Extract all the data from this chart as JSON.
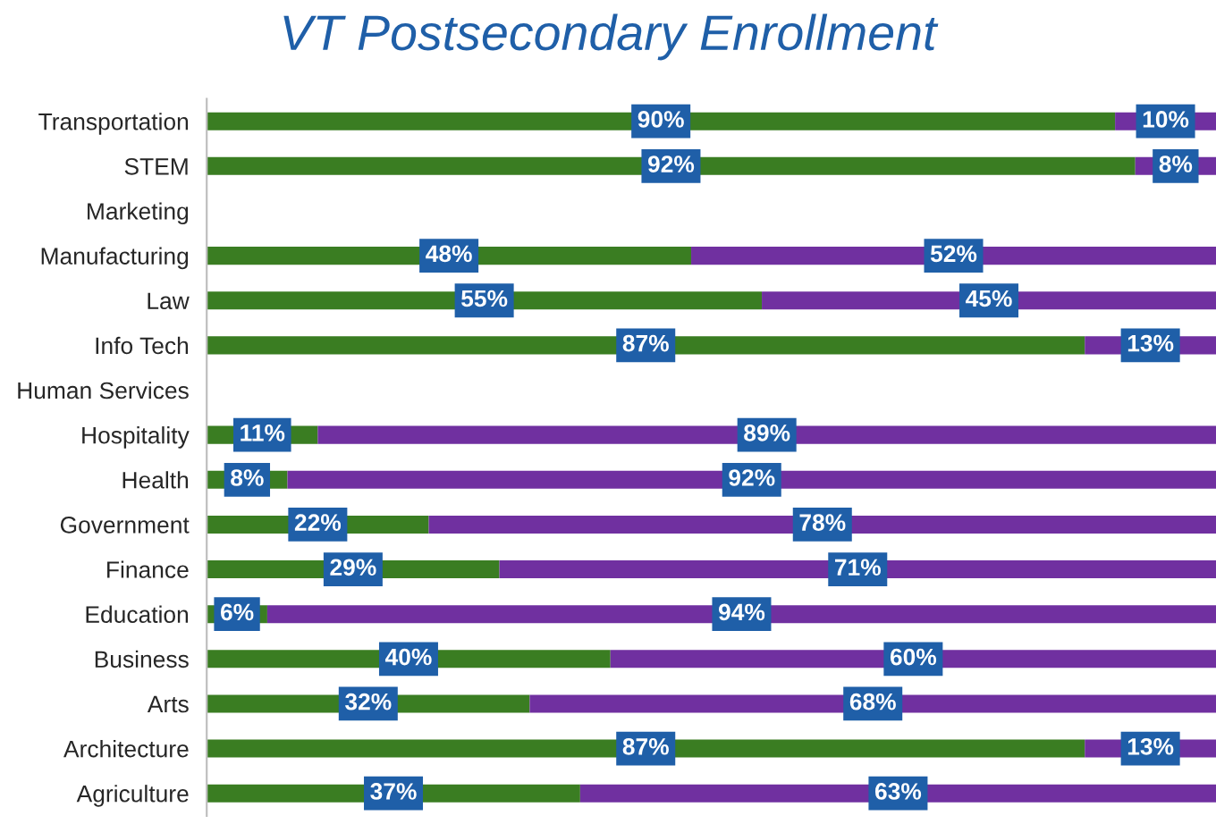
{
  "chart_data": {
    "type": "bar",
    "orientation": "horizontal",
    "stacked": true,
    "title": "VT Postsecondary Enrollment",
    "tick_labels": "y",
    "grid": false,
    "legend": false,
    "categories": [
      "Transportation",
      "STEM",
      "Marketing",
      "Manufacturing",
      "Law",
      "Info Tech",
      "Human Services",
      "Hospitality",
      "Health",
      "Government",
      "Finance",
      "Education",
      "Business",
      "Arts",
      "Architecture",
      "Agriculture"
    ],
    "series": [
      {
        "color": "#3a7d22",
        "values": [
          90,
          92,
          null,
          48,
          55,
          87,
          null,
          11,
          8,
          22,
          29,
          6,
          40,
          32,
          87,
          37
        ],
        "value_labels": [
          "90%",
          "92%",
          null,
          "48%",
          "55%",
          "87%",
          null,
          "11%",
          "8%",
          "22%",
          "29%",
          "6%",
          "40%",
          "32%",
          "87%",
          "37%"
        ]
      },
      {
        "color": "#7030a0",
        "values": [
          10,
          8,
          null,
          52,
          45,
          13,
          null,
          89,
          92,
          78,
          71,
          94,
          60,
          68,
          13,
          63
        ],
        "value_labels": [
          "10%",
          "8%",
          null,
          "52%",
          "45%",
          "13%",
          null,
          "89%",
          "92%",
          "78%",
          "71%",
          "94%",
          "60%",
          "68%",
          "13%",
          "63%"
        ]
      }
    ]
  }
}
